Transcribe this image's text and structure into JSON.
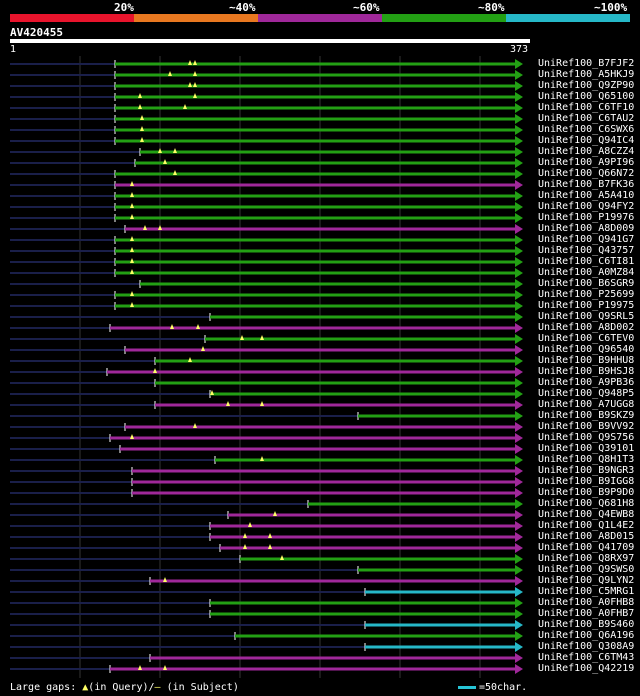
{
  "legend": {
    "labels": [
      "20%",
      "~40%",
      "~60%",
      "~80%",
      "~100%"
    ],
    "colors": [
      "#e8142c",
      "#e87820",
      "#a0289a",
      "#23a014",
      "#26b8c8"
    ]
  },
  "query": {
    "name": "AV420455",
    "start": "1",
    "end": "373",
    "length": 373
  },
  "hits": [
    {
      "label": "UniRef100_B7FJF2",
      "start": 115,
      "end": 515,
      "color": "#23a014",
      "gaps": [
        190,
        195
      ]
    },
    {
      "label": "UniRef100_A5HKJ9",
      "start": 115,
      "end": 515,
      "color": "#23a014",
      "gaps": [
        170,
        195
      ]
    },
    {
      "label": "UniRef100_Q9ZP90",
      "start": 115,
      "end": 515,
      "color": "#23a014",
      "gaps": [
        190,
        195
      ]
    },
    {
      "label": "UniRef100_Q65100",
      "start": 115,
      "end": 515,
      "color": "#23a014",
      "gaps": [
        140,
        195
      ]
    },
    {
      "label": "UniRef100_C6TF10",
      "start": 115,
      "end": 515,
      "color": "#23a014",
      "gaps": [
        140,
        185
      ]
    },
    {
      "label": "UniRef100_C6TAU2",
      "start": 115,
      "end": 515,
      "color": "#23a014",
      "gaps": [
        142
      ]
    },
    {
      "label": "UniRef100_C6SWX6",
      "start": 115,
      "end": 515,
      "color": "#23a014",
      "gaps": [
        142
      ]
    },
    {
      "label": "UniRef100_Q94IC4",
      "start": 115,
      "end": 515,
      "color": "#23a014",
      "gaps": [
        142
      ]
    },
    {
      "label": "UniRef100_A8CZZ4",
      "start": 140,
      "end": 515,
      "color": "#23a014",
      "gaps": [
        160,
        175
      ]
    },
    {
      "label": "UniRef100_A9PI96",
      "start": 135,
      "end": 515,
      "color": "#23a014",
      "gaps": [
        165
      ]
    },
    {
      "label": "UniRef100_Q66N72",
      "start": 115,
      "end": 515,
      "color": "#23a014",
      "gaps": [
        175
      ]
    },
    {
      "label": "UniRef100_B7FK36",
      "start": 115,
      "end": 515,
      "color": "#a0289a",
      "gaps": [
        132
      ]
    },
    {
      "label": "UniRef100_A5A410",
      "start": 115,
      "end": 515,
      "color": "#23a014",
      "gaps": [
        132
      ]
    },
    {
      "label": "UniRef100_Q94FY2",
      "start": 115,
      "end": 515,
      "color": "#23a014",
      "gaps": [
        132
      ]
    },
    {
      "label": "UniRef100_P19976",
      "start": 115,
      "end": 515,
      "color": "#23a014",
      "gaps": [
        132
      ]
    },
    {
      "label": "UniRef100_A8D009",
      "start": 125,
      "end": 515,
      "color": "#a0289a",
      "gaps": [
        145,
        160
      ]
    },
    {
      "label": "UniRef100_Q941G7",
      "start": 115,
      "end": 515,
      "color": "#23a014",
      "gaps": [
        132
      ]
    },
    {
      "label": "UniRef100_Q43757",
      "start": 115,
      "end": 515,
      "color": "#23a014",
      "gaps": [
        132
      ]
    },
    {
      "label": "UniRef100_C6TI81",
      "start": 115,
      "end": 515,
      "color": "#23a014",
      "gaps": [
        132
      ]
    },
    {
      "label": "UniRef100_A0MZ84",
      "start": 115,
      "end": 515,
      "color": "#23a014",
      "gaps": [
        132
      ]
    },
    {
      "label": "UniRef100_B6SGR9",
      "start": 140,
      "end": 515,
      "color": "#23a014",
      "gaps": []
    },
    {
      "label": "UniRef100_P25699",
      "start": 115,
      "end": 515,
      "color": "#23a014",
      "gaps": [
        132
      ]
    },
    {
      "label": "UniRef100_P19975",
      "start": 115,
      "end": 515,
      "color": "#23a014",
      "gaps": [
        132
      ]
    },
    {
      "label": "UniRef100_Q9SRL5",
      "start": 210,
      "end": 515,
      "color": "#23a014",
      "gaps": []
    },
    {
      "label": "UniRef100_A8D002",
      "start": 110,
      "end": 515,
      "color": "#a0289a",
      "gaps": [
        172,
        198
      ]
    },
    {
      "label": "UniRef100_C6TEV0",
      "start": 205,
      "end": 515,
      "color": "#23a014",
      "gaps": [
        242,
        262
      ]
    },
    {
      "label": "UniRef100_Q96540",
      "start": 125,
      "end": 515,
      "color": "#a0289a",
      "gaps": [
        203
      ]
    },
    {
      "label": "UniRef100_B9HHU8",
      "start": 155,
      "end": 515,
      "color": "#23a014",
      "gaps": [
        190
      ]
    },
    {
      "label": "UniRef100_B9HSJ8",
      "start": 107,
      "end": 515,
      "color": "#a0289a",
      "gaps": [
        155
      ]
    },
    {
      "label": "UniRef100_A9PB36",
      "start": 155,
      "end": 515,
      "color": "#23a014",
      "gaps": []
    },
    {
      "label": "UniRef100_Q948P5",
      "start": 210,
      "end": 515,
      "color": "#23a014",
      "gaps": [
        212
      ]
    },
    {
      "label": "UniRef100_A7UGG8",
      "start": 155,
      "end": 515,
      "color": "#a0289a",
      "gaps": [
        228,
        262
      ]
    },
    {
      "label": "UniRef100_B9SKZ9",
      "start": 358,
      "end": 515,
      "color": "#23a014",
      "gaps": []
    },
    {
      "label": "UniRef100_B9VV92",
      "start": 125,
      "end": 515,
      "color": "#a0289a",
      "gaps": [
        195
      ]
    },
    {
      "label": "UniRef100_Q9S756",
      "start": 110,
      "end": 515,
      "color": "#a0289a",
      "gaps": [
        132
      ]
    },
    {
      "label": "UniRef100_Q39101",
      "start": 120,
      "end": 515,
      "color": "#a0289a",
      "gaps": []
    },
    {
      "label": "UniRef100_Q8H1T3",
      "start": 215,
      "end": 515,
      "color": "#23a014",
      "gaps": [
        262
      ]
    },
    {
      "label": "UniRef100_B9NGR3",
      "start": 132,
      "end": 515,
      "color": "#a0289a",
      "gaps": []
    },
    {
      "label": "UniRef100_B9IGG8",
      "start": 132,
      "end": 515,
      "color": "#a0289a",
      "gaps": []
    },
    {
      "label": "UniRef100_B9P9D0",
      "start": 132,
      "end": 515,
      "color": "#a0289a",
      "gaps": []
    },
    {
      "label": "UniRef100_Q681H8",
      "start": 308,
      "end": 515,
      "color": "#23a014",
      "gaps": []
    },
    {
      "label": "UniRef100_Q4EWB8",
      "start": 228,
      "end": 515,
      "color": "#a0289a",
      "gaps": [
        275
      ]
    },
    {
      "label": "UniRef100_Q1L4E2",
      "start": 210,
      "end": 515,
      "color": "#a0289a",
      "gaps": [
        250
      ]
    },
    {
      "label": "UniRef100_A8D015",
      "start": 210,
      "end": 515,
      "color": "#a0289a",
      "gaps": [
        245,
        270
      ]
    },
    {
      "label": "UniRef100_Q41709",
      "start": 220,
      "end": 515,
      "color": "#a0289a",
      "gaps": [
        245,
        270
      ]
    },
    {
      "label": "UniRef100_Q8RX97",
      "start": 240,
      "end": 515,
      "color": "#23a014",
      "gaps": [
        282
      ]
    },
    {
      "label": "UniRef100_Q9SWS0",
      "start": 358,
      "end": 515,
      "color": "#23a014",
      "gaps": []
    },
    {
      "label": "UniRef100_Q9LYN2",
      "start": 150,
      "end": 515,
      "color": "#a0289a",
      "gaps": [
        165
      ]
    },
    {
      "label": "UniRef100_C5MRG1",
      "start": 365,
      "end": 515,
      "color": "#26b8c8",
      "gaps": []
    },
    {
      "label": "UniRef100_A0FHB8",
      "start": 210,
      "end": 515,
      "color": "#23a014",
      "gaps": []
    },
    {
      "label": "UniRef100_A0FHB7",
      "start": 210,
      "end": 515,
      "color": "#23a014",
      "gaps": []
    },
    {
      "label": "UniRef100_B9S460",
      "start": 365,
      "end": 515,
      "color": "#26b8c8",
      "gaps": []
    },
    {
      "label": "UniRef100_Q6A196",
      "start": 235,
      "end": 515,
      "color": "#23a014",
      "gaps": []
    },
    {
      "label": "UniRef100_Q308A9",
      "start": 365,
      "end": 515,
      "color": "#26b8c8",
      "gaps": []
    },
    {
      "label": "UniRef100_C6TM43",
      "start": 150,
      "end": 515,
      "color": "#a0289a",
      "gaps": []
    },
    {
      "label": "UniRef100_Q42219",
      "start": 110,
      "end": 515,
      "color": "#a0289a",
      "gaps": [
        140,
        165
      ]
    }
  ],
  "footer": {
    "large_gaps": "Large gaps:",
    "triangle": "▲",
    "in_query": "(in Query)/",
    "dash": "–",
    "in_subject": "(in Subject)",
    "scale": "=50char."
  }
}
